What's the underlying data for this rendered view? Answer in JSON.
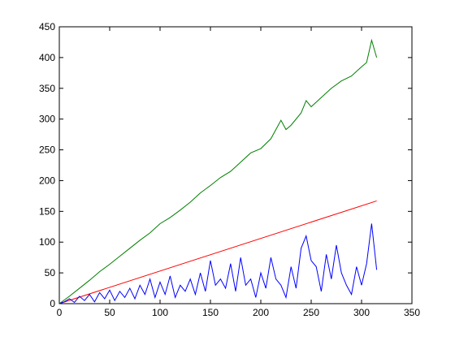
{
  "chart_data": {
    "type": "line",
    "series": [
      {
        "color": "#007f00",
        "x": [
          0,
          10,
          20,
          30,
          40,
          50,
          60,
          70,
          80,
          90,
          100,
          110,
          120,
          130,
          140,
          150,
          160,
          170,
          180,
          190,
          200,
          210,
          220,
          225,
          230,
          240,
          245,
          250,
          260,
          270,
          280,
          290,
          300,
          305,
          310,
          315
        ],
        "values": [
          0,
          12,
          25,
          38,
          52,
          64,
          77,
          90,
          103,
          115,
          130,
          140,
          152,
          165,
          180,
          192,
          205,
          215,
          230,
          245,
          252,
          268,
          298,
          283,
          290,
          310,
          330,
          320,
          335,
          350,
          362,
          370,
          385,
          392,
          428,
          400
        ]
      },
      {
        "color": "#ff0000",
        "x": [
          0,
          315
        ],
        "values": [
          0,
          167
        ]
      },
      {
        "color": "#0000ff",
        "x": [
          0,
          5,
          10,
          15,
          20,
          25,
          30,
          35,
          40,
          45,
          50,
          55,
          60,
          65,
          70,
          75,
          80,
          85,
          90,
          95,
          100,
          105,
          110,
          115,
          120,
          125,
          130,
          135,
          140,
          145,
          150,
          155,
          160,
          165,
          170,
          175,
          180,
          185,
          190,
          195,
          200,
          205,
          210,
          215,
          220,
          225,
          230,
          235,
          240,
          245,
          250,
          255,
          260,
          265,
          270,
          275,
          280,
          285,
          290,
          295,
          300,
          305,
          310,
          315
        ],
        "values": [
          0,
          3,
          8,
          2,
          12,
          5,
          15,
          3,
          18,
          8,
          22,
          5,
          20,
          10,
          25,
          8,
          30,
          15,
          40,
          10,
          35,
          15,
          45,
          10,
          30,
          20,
          40,
          15,
          50,
          20,
          70,
          30,
          40,
          25,
          65,
          20,
          75,
          30,
          40,
          10,
          50,
          25,
          75,
          40,
          30,
          10,
          60,
          25,
          90,
          110,
          70,
          60,
          20,
          80,
          40,
          95,
          50,
          30,
          15,
          60,
          30,
          65,
          130,
          55
        ]
      }
    ],
    "xlim": [
      0,
      350
    ],
    "xticks": [
      0,
      50,
      100,
      150,
      200,
      250,
      300,
      350
    ],
    "ylim": [
      0,
      450
    ],
    "yticks": [
      0,
      50,
      100,
      150,
      200,
      250,
      300,
      350,
      400,
      450
    ]
  }
}
